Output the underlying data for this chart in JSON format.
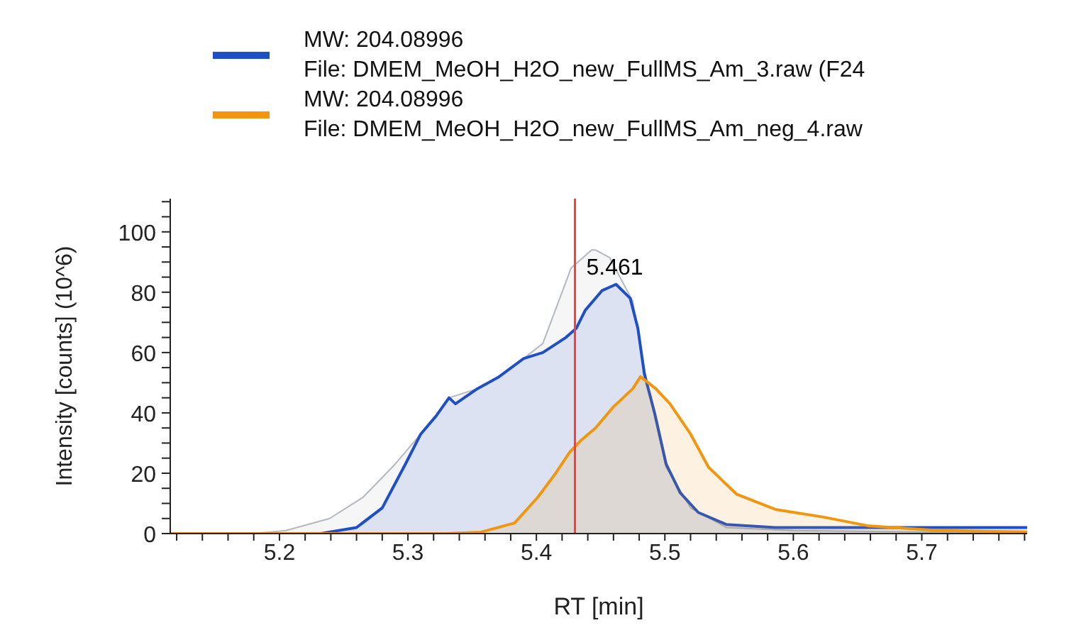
{
  "chart_data": {
    "type": "area",
    "xlabel": "RT [min]",
    "ylabel": "Intensity [counts] (10^6)",
    "legend": "top",
    "grid": false,
    "marker": "none",
    "line_style": "solid",
    "xlim": [
      5.115,
      5.782
    ],
    "ylim": [
      0,
      111
    ],
    "xticks": [
      {
        "value": 5.12,
        "label": null
      },
      {
        "value": 5.14,
        "label": null
      },
      {
        "value": 5.16,
        "label": null
      },
      {
        "value": 5.18,
        "label": null
      },
      5.2,
      {
        "value": 5.22,
        "label": null
      },
      {
        "value": 5.24,
        "label": null
      },
      {
        "value": 5.26,
        "label": null
      },
      {
        "value": 5.28,
        "label": null
      },
      5.3,
      {
        "value": 5.32,
        "label": null
      },
      {
        "value": 5.34,
        "label": null
      },
      {
        "value": 5.36,
        "label": null
      },
      {
        "value": 5.38,
        "label": null
      },
      5.4,
      {
        "value": 5.42,
        "label": null
      },
      {
        "value": 5.44,
        "label": null
      },
      {
        "value": 5.46,
        "label": null
      },
      {
        "value": 5.48,
        "label": null
      },
      5.5,
      {
        "value": 5.52,
        "label": null
      },
      {
        "value": 5.54,
        "label": null
      },
      {
        "value": 5.56,
        "label": null
      },
      {
        "value": 5.58,
        "label": null
      },
      5.6,
      {
        "value": 5.62,
        "label": null
      },
      {
        "value": 5.64,
        "label": null
      },
      {
        "value": 5.66,
        "label": null
      },
      {
        "value": 5.68,
        "label": null
      },
      5.7,
      {
        "value": 5.72,
        "label": null
      },
      {
        "value": 5.74,
        "label": null
      },
      {
        "value": 5.76,
        "label": null
      },
      {
        "value": 5.78,
        "label": null
      }
    ],
    "yticks": [
      0,
      {
        "value": 5,
        "label": null
      },
      {
        "value": 10,
        "label": null
      },
      {
        "value": 15,
        "label": null
      },
      20,
      {
        "value": 25,
        "label": null
      },
      {
        "value": 30,
        "label": null
      },
      {
        "value": 35,
        "label": null
      },
      40,
      {
        "value": 45,
        "label": null
      },
      {
        "value": 50,
        "label": null
      },
      {
        "value": 55,
        "label": null
      },
      60,
      {
        "value": 65,
        "label": null
      },
      {
        "value": 70,
        "label": null
      },
      {
        "value": 75,
        "label": null
      },
      80,
      {
        "value": 85,
        "label": null
      },
      {
        "value": 90,
        "label": null
      },
      {
        "value": 95,
        "label": null
      },
      100,
      {
        "value": 105,
        "label": null
      },
      {
        "value": 110,
        "label": null
      }
    ],
    "ref_lines": [
      {
        "axis": "x",
        "value": 5.43,
        "color": "#ff3b3b"
      }
    ],
    "annotations": [
      {
        "text": "5.461",
        "x": 5.461,
        "y": 83
      }
    ],
    "series": [
      {
        "color": "#b4b8c0",
        "x": [
          5.115,
          5.18,
          5.205,
          5.239,
          5.265,
          5.29,
          5.31,
          5.322,
          5.332,
          5.354,
          5.371,
          5.39,
          5.405,
          5.427,
          5.443,
          5.446,
          5.457,
          5.475,
          5.486,
          5.501,
          5.52,
          5.548,
          5.6,
          5.7,
          5.782
        ],
        "values": [
          0,
          0,
          1,
          5,
          12,
          23,
          33,
          39,
          45,
          48,
          52,
          58,
          63,
          88,
          94,
          94,
          91.5,
          77,
          50,
          22,
          8.5,
          2,
          1,
          0.5,
          0.5
        ]
      },
      {
        "name": "MW: 204.08996\nFile: DMEM_MeOH_H2O_new_FullMS_Am_3.raw (F24",
        "color": "#1f4fc4",
        "x": [
          5.115,
          5.232,
          5.26,
          5.28,
          5.298,
          5.31,
          5.322,
          5.332,
          5.337,
          5.354,
          5.371,
          5.39,
          5.405,
          5.423,
          5.431,
          5.438,
          5.451,
          5.462,
          5.473,
          5.479,
          5.484,
          5.492,
          5.501,
          5.512,
          5.526,
          5.548,
          5.586,
          5.65,
          5.7,
          5.782
        ],
        "values": [
          0,
          0,
          2,
          8.5,
          23,
          33,
          39,
          45,
          43,
          48,
          52,
          58,
          60,
          65,
          68,
          74,
          80.5,
          82.6,
          78,
          68,
          53,
          40,
          23,
          13.5,
          7,
          3,
          2,
          2,
          2,
          2
        ]
      },
      {
        "name": "MW: 204.08996\nFile: DMEM_MeOH_H2O_new_FullMS_Am_neg_4.raw",
        "color": "#f0960f",
        "x": [
          5.115,
          5.33,
          5.357,
          5.383,
          5.401,
          5.415,
          5.426,
          5.435,
          5.446,
          5.46,
          5.475,
          5.481,
          5.493,
          5.504,
          5.52,
          5.534,
          5.556,
          5.586,
          5.623,
          5.659,
          5.714,
          5.782
        ],
        "values": [
          0,
          0,
          0.5,
          3.5,
          12,
          20,
          27,
          31,
          35,
          42,
          48,
          52,
          48,
          43,
          33,
          22,
          13,
          8,
          5.5,
          2.5,
          1,
          0.5
        ]
      }
    ]
  }
}
